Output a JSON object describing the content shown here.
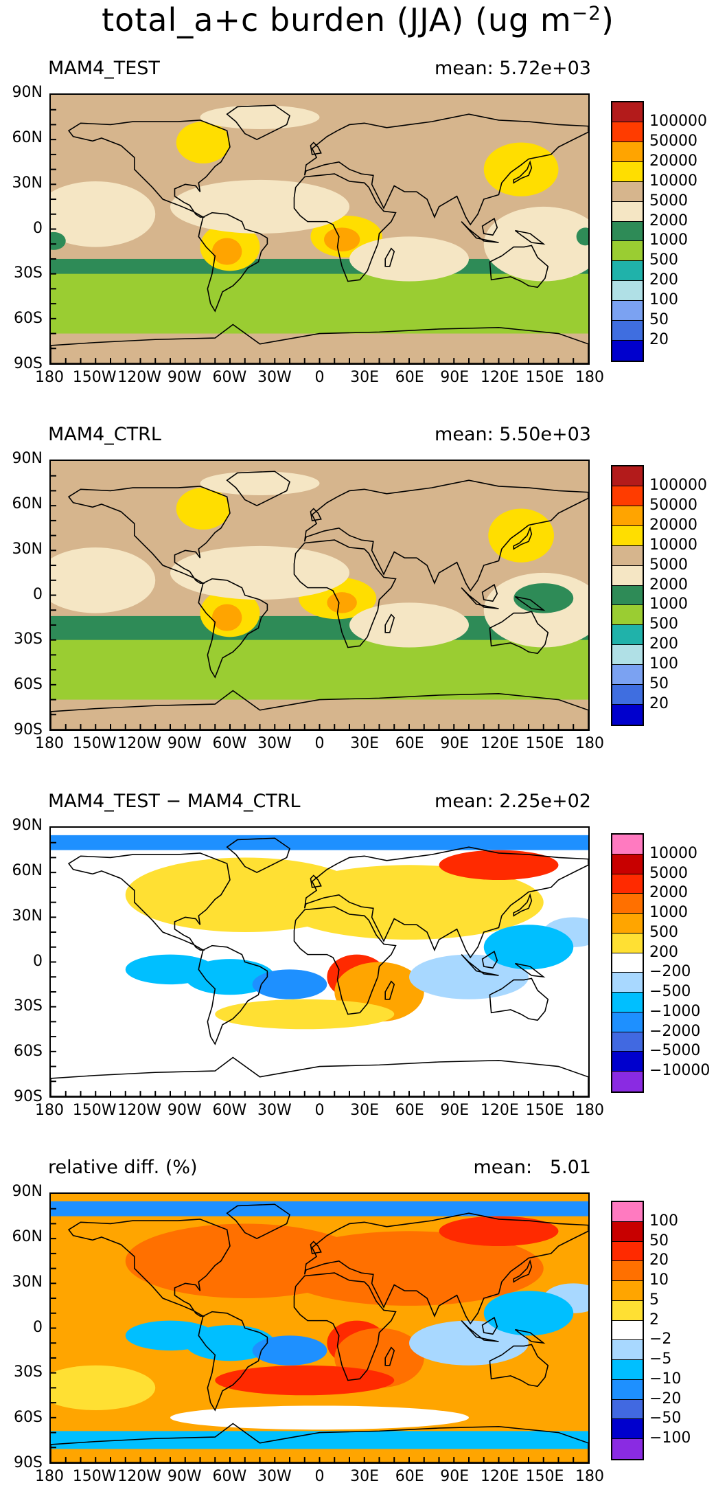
{
  "figure": {
    "title": "total_a+c burden (JJA) (ug m",
    "title_sup": "−2",
    "title_close": ")"
  },
  "axes": {
    "lat_labels": [
      "90N",
      "60N",
      "30N",
      "0",
      "30S",
      "60S",
      "90S"
    ],
    "lon_labels": [
      "180",
      "150W",
      "120W",
      "90W",
      "60W",
      "30W",
      "0",
      "30E",
      "60E",
      "90E",
      "120E",
      "150E",
      "180"
    ]
  },
  "panels": [
    {
      "id": "test",
      "title": "MAM4_TEST",
      "mean_text": "mean: 5.72e+03",
      "colorbar": {
        "colors": [
          "#b31b1b",
          "#ff3c00",
          "#ffa400",
          "#ffde00",
          "#d6b58d",
          "#f5e6c4",
          "#2e8b57",
          "#9acd32",
          "#20b2aa",
          "#b0e0e6",
          "#7ba2f2",
          "#3f6ee0",
          "#0000cd"
        ],
        "labels": [
          "100000",
          "50000",
          "20000",
          "10000",
          "5000",
          "2000",
          "1000",
          "500",
          "200",
          "100",
          "50",
          "20"
        ]
      }
    },
    {
      "id": "ctrl",
      "title": "MAM4_CTRL",
      "mean_text": "mean: 5.50e+03",
      "colorbar": {
        "colors": [
          "#b31b1b",
          "#ff3c00",
          "#ffa400",
          "#ffde00",
          "#d6b58d",
          "#f5e6c4",
          "#2e8b57",
          "#9acd32",
          "#20b2aa",
          "#b0e0e6",
          "#7ba2f2",
          "#3f6ee0",
          "#0000cd"
        ],
        "labels": [
          "100000",
          "50000",
          "20000",
          "10000",
          "5000",
          "2000",
          "1000",
          "500",
          "200",
          "100",
          "50",
          "20"
        ]
      }
    },
    {
      "id": "diff",
      "title": "MAM4_TEST − MAM4_CTRL",
      "mean_text": "mean: 2.25e+02",
      "colorbar": {
        "colors": [
          "#ff7ac0",
          "#c80000",
          "#ff2a00",
          "#ff7000",
          "#ffa500",
          "#ffe033",
          "#ffffff",
          "#a8d8ff",
          "#00bfff",
          "#1e90ff",
          "#4169e1",
          "#0000cd",
          "#8a2be2"
        ],
        "labels": [
          "10000",
          "5000",
          "2000",
          "1000",
          "500",
          "200",
          "−200",
          "−500",
          "−1000",
          "−2000",
          "−5000",
          "−10000"
        ]
      }
    },
    {
      "id": "rel",
      "title": "relative diff. (%)",
      "mean_text": "mean:   5.01",
      "colorbar": {
        "colors": [
          "#ff7ac0",
          "#c80000",
          "#ff2a00",
          "#ff7000",
          "#ffa500",
          "#ffe033",
          "#ffffff",
          "#a8d8ff",
          "#00bfff",
          "#1e90ff",
          "#4169e1",
          "#0000cd",
          "#8a2be2"
        ],
        "labels": [
          "100",
          "50",
          "20",
          "10",
          "5",
          "2",
          "−2",
          "−5",
          "−10",
          "−20",
          "−50",
          "−100"
        ]
      }
    }
  ]
}
